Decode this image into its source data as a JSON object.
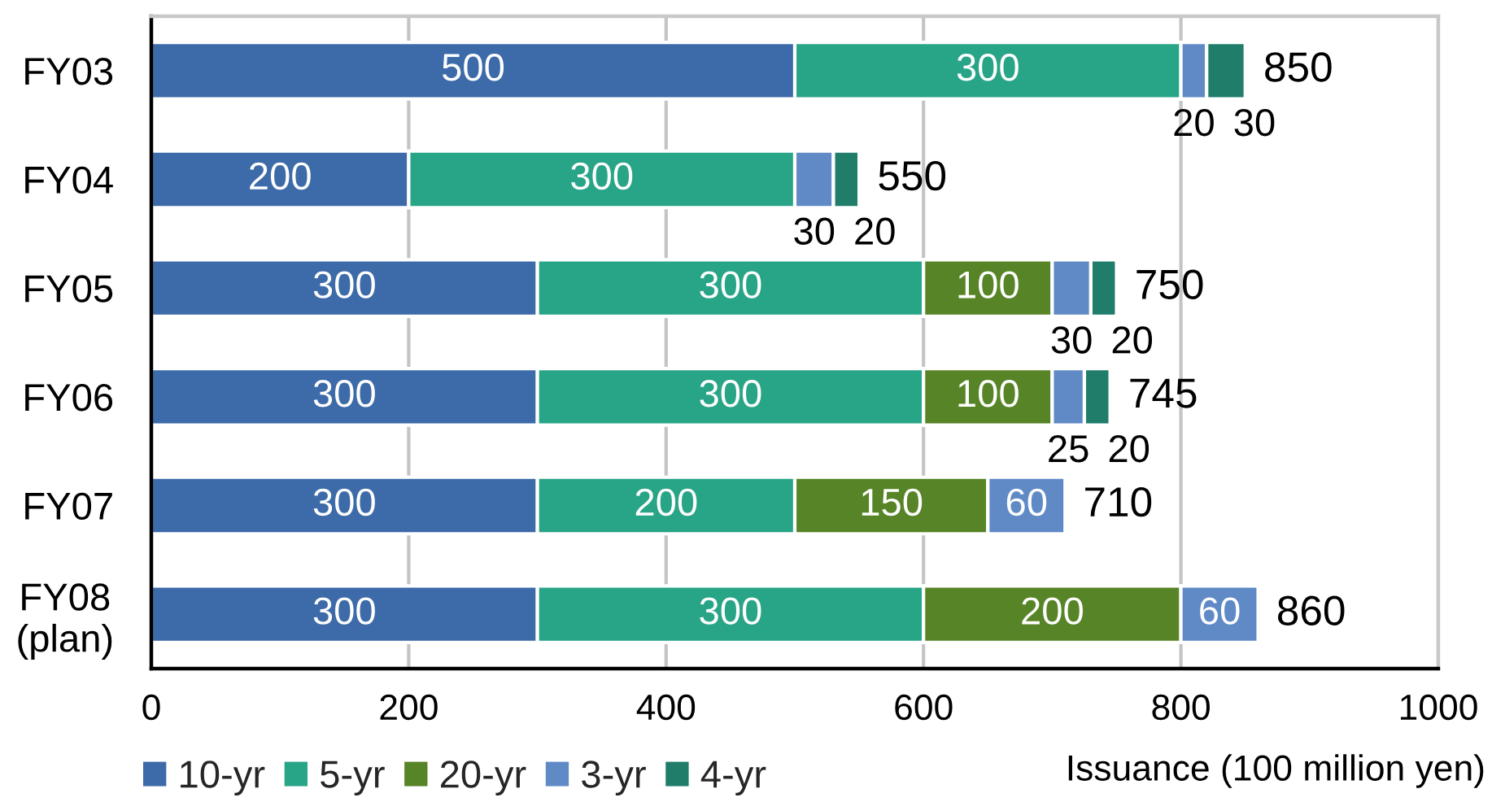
{
  "chart_data": {
    "type": "bar",
    "orientation": "horizontal",
    "stacked": true,
    "categories": [
      "FY03",
      "FY04",
      "FY05",
      "FY06",
      "FY07",
      "FY08\n(plan)"
    ],
    "series": [
      {
        "name": "10-yr",
        "color": "#3d6aa8",
        "values": [
          500,
          200,
          300,
          300,
          300,
          300
        ]
      },
      {
        "name": "5-yr",
        "color": "#28a487",
        "values": [
          300,
          300,
          300,
          300,
          200,
          300
        ]
      },
      {
        "name": "20-yr",
        "color": "#578426",
        "values": [
          null,
          null,
          100,
          100,
          150,
          200
        ]
      },
      {
        "name": "3-yr",
        "color": "#5f8ac6",
        "values": [
          20,
          30,
          30,
          25,
          60,
          60
        ]
      },
      {
        "name": "4-yr",
        "color": "#1f7d6a",
        "values": [
          30,
          20,
          20,
          20,
          null,
          null
        ]
      }
    ],
    "xlim": [
      0,
      1000
    ],
    "xticks": [
      0,
      200,
      400,
      600,
      800,
      1000
    ],
    "xlabel": "Issuance (100 million yen)",
    "grid": "x",
    "legend": "bottom",
    "data_labels": true,
    "totals": [
      "850",
      "550",
      "750",
      "745",
      "710",
      "860"
    ]
  }
}
